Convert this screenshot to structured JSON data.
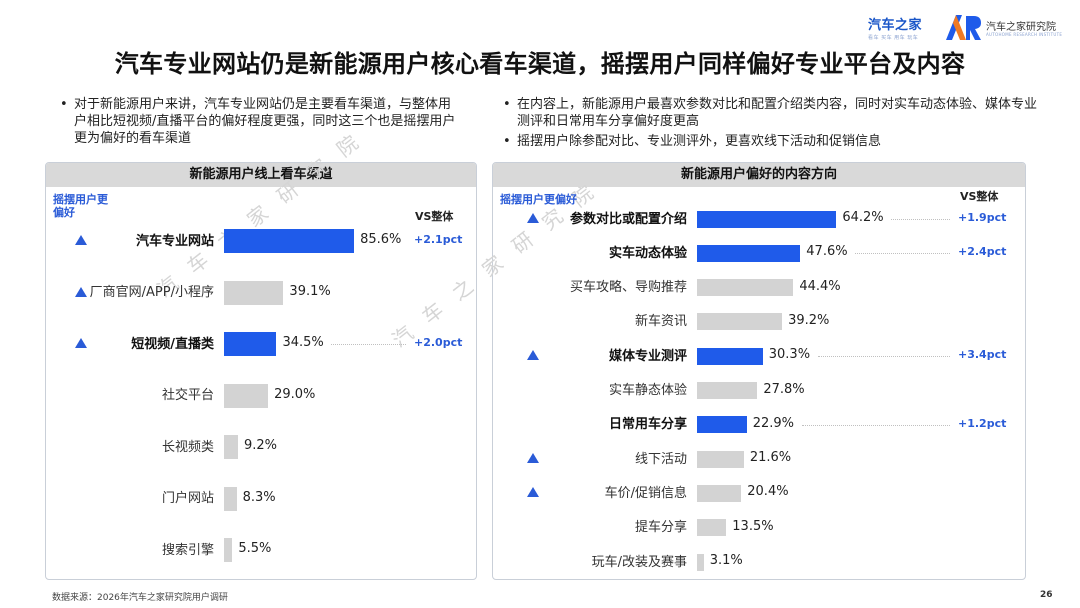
{
  "header": {
    "logo1_text": "汽车之家",
    "logo1_sub": "看车 买车 用车 玩车",
    "logo2_text": "汽车之家研究院",
    "logo2_sub": "AUTOHOME RESEARCH INSTITUTE",
    "title": "汽车专业网站仍是新能源用户核心看车渠道，摇摆用户同样偏好专业平台及内容"
  },
  "bullets_left": [
    "对于新能源用户来讲，汽车专业网站仍是主要看车渠道，与整体用户相比短视频/直播平台的偏好程度更强，同时这三个也是摇摆用户更为偏好的看车渠道"
  ],
  "bullets_right": [
    "在内容上，新能源用户最喜欢参数对比和配置介绍类内容，同时对实车动态体验、媒体专业测评和日常用车分享偏好度更高",
    "摇摆用户除参配对比、专业测评外，更喜欢线下活动和促销信息"
  ],
  "watermark": [
    "汽车之家研究院",
    "汽车之家研究院"
  ],
  "colors": {
    "highlight": "#1f5bea",
    "normal": "#d3d3d3",
    "accent": "#2a5bd7"
  },
  "chart_data": [
    {
      "type": "bar",
      "orientation": "horizontal",
      "title": "新能源用户线上看车渠道",
      "swing_header": "摇摆用户更偏好",
      "vs_header": "VS整体",
      "xlim": [
        0,
        100
      ],
      "categories": [
        "汽车专业网站",
        "厂商官网/APP/小程序",
        "短视频/直播类",
        "社交平台",
        "长视频类",
        "门户网站",
        "搜索引擎"
      ],
      "values": [
        85.6,
        39.1,
        34.5,
        29.0,
        9.2,
        8.3,
        5.5
      ],
      "value_labels": [
        "85.6%",
        "39.1%",
        "34.5%",
        "29.0%",
        "9.2%",
        "8.3%",
        "5.5%"
      ],
      "highlighted": [
        true,
        false,
        true,
        false,
        false,
        false,
        false
      ],
      "swing_preferred": [
        true,
        true,
        true,
        false,
        false,
        false,
        false
      ],
      "vs_overall": [
        "+2.1pct",
        "",
        "+2.0pct",
        "",
        "",
        "",
        ""
      ]
    },
    {
      "type": "bar",
      "orientation": "horizontal",
      "title": "新能源用户偏好的内容方向",
      "swing_header": "摇摆用户更偏好",
      "vs_header": "VS整体",
      "xlim": [
        0,
        100
      ],
      "categories": [
        "参数对比或配置介绍",
        "实车动态体验",
        "买车攻略、导购推荐",
        "新车资讯",
        "媒体专业测评",
        "实车静态体验",
        "日常用车分享",
        "线下活动",
        "车价/促销信息",
        "提车分享",
        "玩车/改装及赛事"
      ],
      "values": [
        64.2,
        47.6,
        44.4,
        39.2,
        30.3,
        27.8,
        22.9,
        21.6,
        20.4,
        13.5,
        3.1
      ],
      "value_labels": [
        "64.2%",
        "47.6%",
        "44.4%",
        "39.2%",
        "30.3%",
        "27.8%",
        "22.9%",
        "21.6%",
        "20.4%",
        "13.5%",
        "3.1%"
      ],
      "highlighted": [
        true,
        true,
        false,
        false,
        true,
        false,
        true,
        false,
        false,
        false,
        false
      ],
      "swing_preferred": [
        true,
        false,
        false,
        false,
        true,
        false,
        false,
        true,
        true,
        false,
        false
      ],
      "vs_overall": [
        "+1.9pct",
        "+2.4pct",
        "",
        "",
        "+3.4pct",
        "",
        "+1.2pct",
        "",
        "",
        "",
        ""
      ]
    }
  ],
  "footer": {
    "source": "数据来源：2026年汽车之家研究院用户调研",
    "page": "26"
  }
}
